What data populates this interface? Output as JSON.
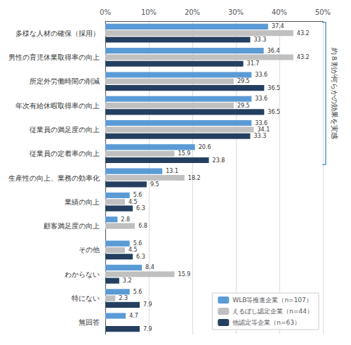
{
  "chart_data": {
    "type": "bar",
    "orientation": "horizontal",
    "categories": [
      "多様な人材の確保（採用）",
      "男性の育児休業取得率の向上",
      "所定外労働時間の削減",
      "年次有給休暇取得率の向上",
      "従業員の満足度の向上",
      "従業員の定着率の向上",
      "生産性の向上、業務の効率化",
      "業績の向上",
      "顧客満足度の向上",
      "その他",
      "わからない",
      "特にない",
      "無回答"
    ],
    "series": [
      {
        "name": "WLB等推進企業（n=107）",
        "color": "#5b9bd5",
        "values": [
          37.4,
          36.4,
          33.6,
          33.6,
          33.6,
          20.6,
          13.1,
          5.6,
          2.8,
          5.6,
          8.4,
          5.6,
          4.7
        ]
      },
      {
        "name": "えるぼし認定企業（n=44）",
        "color": "#c0c0c0",
        "values": [
          43.2,
          43.2,
          29.5,
          29.5,
          34.1,
          15.9,
          18.2,
          4.5,
          6.8,
          4.5,
          15.9,
          2.3,
          0.0
        ],
        "value_labels": [
          "43.2",
          "43.2",
          "29.5",
          "29.5",
          "34.1",
          "15.9",
          "18.2",
          "4.5",
          "6.8",
          "4.5",
          "15.9",
          "2.3",
          null
        ]
      },
      {
        "name": "他認定等企業（n=63）",
        "color": "#243f60",
        "values": [
          33.3,
          31.7,
          36.5,
          36.5,
          33.3,
          23.8,
          9.5,
          6.3,
          0.0,
          6.3,
          3.2,
          7.9,
          7.9
        ],
        "value_labels": [
          "33.3",
          "31.7",
          "36.5",
          "36.5",
          "33.3",
          "23.8",
          "9.5",
          "6.3",
          null,
          "6.3",
          "3.2",
          "7.9",
          "7.9"
        ]
      }
    ],
    "xlim": [
      0,
      50
    ],
    "xticks": [
      {
        "value": 0,
        "label": "0%"
      },
      {
        "value": 10,
        "label": "10%"
      },
      {
        "value": 20,
        "label": "20%"
      },
      {
        "value": 30,
        "label": "30%"
      },
      {
        "value": 40,
        "label": "40%"
      },
      {
        "value": 50,
        "label": "50%"
      }
    ],
    "grid": true,
    "legend": "lower right",
    "data_labels": true,
    "annotations": [
      {
        "text": "約８割が何らかの効果を実感",
        "categories": [
          "多様な人材の確保（採用）",
          "従業員の定着率の向上"
        ]
      }
    ]
  }
}
